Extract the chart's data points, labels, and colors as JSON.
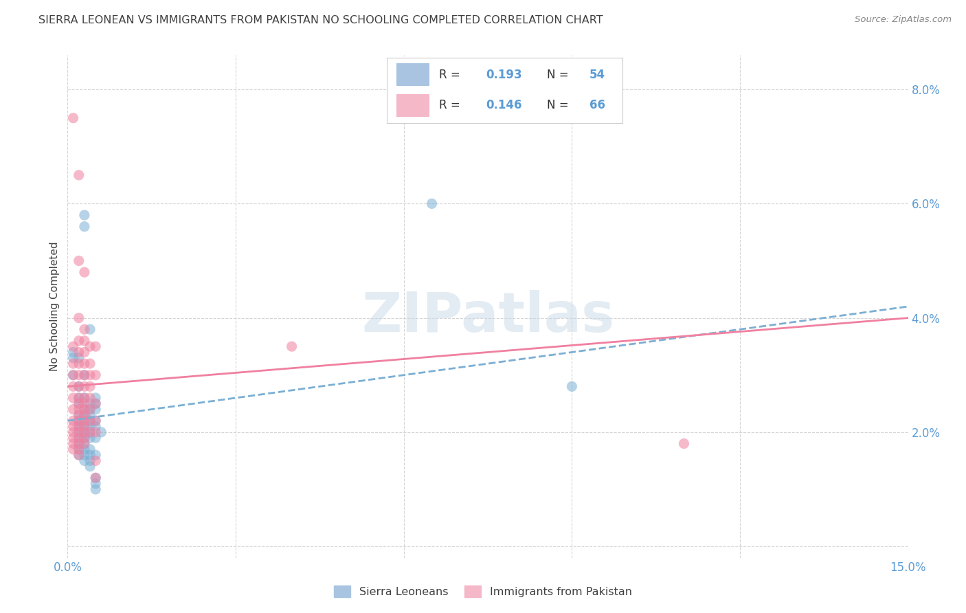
{
  "title": "SIERRA LEONEAN VS IMMIGRANTS FROM PAKISTAN NO SCHOOLING COMPLETED CORRELATION CHART",
  "source": "Source: ZipAtlas.com",
  "ylabel": "No Schooling Completed",
  "xlim": [
    0.0,
    0.15
  ],
  "ylim": [
    -0.002,
    0.086
  ],
  "xticks": [
    0.0,
    0.03,
    0.06,
    0.09,
    0.12,
    0.15
  ],
  "yticks": [
    0.0,
    0.02,
    0.04,
    0.06,
    0.08
  ],
  "xtick_labels": [
    "0.0%",
    "",
    "",
    "",
    "",
    "15.0%"
  ],
  "ytick_labels": [
    "",
    "2.0%",
    "4.0%",
    "6.0%",
    "8.0%"
  ],
  "blue_color": "#7bafd4",
  "pink_color": "#f080a0",
  "blue_fill": "#a8c4e0",
  "pink_fill": "#f4b8c8",
  "trendline_blue_y0": 0.022,
  "trendline_blue_y1": 0.042,
  "trendline_pink_y0": 0.028,
  "trendline_pink_y1": 0.04,
  "watermark": "ZIPatlas",
  "background_color": "#ffffff",
  "grid_color": "#d0d0d0",
  "axis_label_color": "#5b9bd5",
  "title_color": "#404040",
  "blue_scatter": [
    [
      0.001,
      0.034
    ],
    [
      0.001,
      0.033
    ],
    [
      0.001,
      0.03
    ],
    [
      0.002,
      0.033
    ],
    [
      0.002,
      0.028
    ],
    [
      0.002,
      0.026
    ],
    [
      0.002,
      0.025
    ],
    [
      0.002,
      0.023
    ],
    [
      0.002,
      0.022
    ],
    [
      0.002,
      0.021
    ],
    [
      0.002,
      0.02
    ],
    [
      0.002,
      0.019
    ],
    [
      0.002,
      0.018
    ],
    [
      0.002,
      0.017
    ],
    [
      0.002,
      0.016
    ],
    [
      0.003,
      0.058
    ],
    [
      0.003,
      0.056
    ],
    [
      0.003,
      0.03
    ],
    [
      0.003,
      0.026
    ],
    [
      0.003,
      0.024
    ],
    [
      0.003,
      0.023
    ],
    [
      0.003,
      0.022
    ],
    [
      0.003,
      0.021
    ],
    [
      0.003,
      0.02
    ],
    [
      0.003,
      0.019
    ],
    [
      0.003,
      0.018
    ],
    [
      0.003,
      0.017
    ],
    [
      0.003,
      0.016
    ],
    [
      0.003,
      0.015
    ],
    [
      0.004,
      0.038
    ],
    [
      0.004,
      0.025
    ],
    [
      0.004,
      0.024
    ],
    [
      0.004,
      0.023
    ],
    [
      0.004,
      0.022
    ],
    [
      0.004,
      0.021
    ],
    [
      0.004,
      0.02
    ],
    [
      0.004,
      0.019
    ],
    [
      0.004,
      0.017
    ],
    [
      0.004,
      0.016
    ],
    [
      0.004,
      0.015
    ],
    [
      0.004,
      0.014
    ],
    [
      0.005,
      0.026
    ],
    [
      0.005,
      0.025
    ],
    [
      0.005,
      0.024
    ],
    [
      0.005,
      0.022
    ],
    [
      0.005,
      0.021
    ],
    [
      0.005,
      0.019
    ],
    [
      0.005,
      0.016
    ],
    [
      0.005,
      0.012
    ],
    [
      0.005,
      0.011
    ],
    [
      0.005,
      0.01
    ],
    [
      0.006,
      0.02
    ],
    [
      0.065,
      0.06
    ],
    [
      0.09,
      0.028
    ]
  ],
  "pink_scatter": [
    [
      0.001,
      0.075
    ],
    [
      0.001,
      0.035
    ],
    [
      0.001,
      0.032
    ],
    [
      0.001,
      0.03
    ],
    [
      0.001,
      0.028
    ],
    [
      0.001,
      0.026
    ],
    [
      0.001,
      0.024
    ],
    [
      0.001,
      0.022
    ],
    [
      0.001,
      0.021
    ],
    [
      0.001,
      0.02
    ],
    [
      0.001,
      0.019
    ],
    [
      0.001,
      0.018
    ],
    [
      0.001,
      0.017
    ],
    [
      0.002,
      0.065
    ],
    [
      0.002,
      0.05
    ],
    [
      0.002,
      0.04
    ],
    [
      0.002,
      0.036
    ],
    [
      0.002,
      0.034
    ],
    [
      0.002,
      0.032
    ],
    [
      0.002,
      0.03
    ],
    [
      0.002,
      0.028
    ],
    [
      0.002,
      0.026
    ],
    [
      0.002,
      0.025
    ],
    [
      0.002,
      0.024
    ],
    [
      0.002,
      0.023
    ],
    [
      0.002,
      0.022
    ],
    [
      0.002,
      0.021
    ],
    [
      0.002,
      0.02
    ],
    [
      0.002,
      0.019
    ],
    [
      0.002,
      0.018
    ],
    [
      0.002,
      0.017
    ],
    [
      0.002,
      0.016
    ],
    [
      0.003,
      0.048
    ],
    [
      0.003,
      0.038
    ],
    [
      0.003,
      0.036
    ],
    [
      0.003,
      0.034
    ],
    [
      0.003,
      0.032
    ],
    [
      0.003,
      0.03
    ],
    [
      0.003,
      0.028
    ],
    [
      0.003,
      0.026
    ],
    [
      0.003,
      0.025
    ],
    [
      0.003,
      0.024
    ],
    [
      0.003,
      0.023
    ],
    [
      0.003,
      0.022
    ],
    [
      0.003,
      0.021
    ],
    [
      0.003,
      0.02
    ],
    [
      0.003,
      0.019
    ],
    [
      0.003,
      0.018
    ],
    [
      0.004,
      0.035
    ],
    [
      0.004,
      0.032
    ],
    [
      0.004,
      0.03
    ],
    [
      0.004,
      0.028
    ],
    [
      0.004,
      0.026
    ],
    [
      0.004,
      0.024
    ],
    [
      0.004,
      0.022
    ],
    [
      0.004,
      0.02
    ],
    [
      0.005,
      0.035
    ],
    [
      0.005,
      0.03
    ],
    [
      0.005,
      0.025
    ],
    [
      0.005,
      0.022
    ],
    [
      0.005,
      0.02
    ],
    [
      0.005,
      0.015
    ],
    [
      0.005,
      0.012
    ],
    [
      0.04,
      0.035
    ],
    [
      0.11,
      0.018
    ]
  ]
}
